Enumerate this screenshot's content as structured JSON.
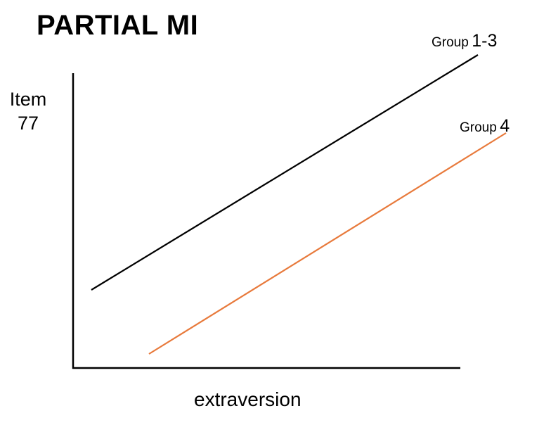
{
  "title": "PARTIAL MI",
  "y_axis": {
    "label_line1": "Item",
    "label_line2": "77"
  },
  "x_axis": {
    "label": "extraversion"
  },
  "series": [
    {
      "label_word": "Group",
      "label_num": "1-3",
      "color": "#000000"
    },
    {
      "label_word": "Group",
      "label_num": "4",
      "color": "#e87a3c"
    }
  ]
}
